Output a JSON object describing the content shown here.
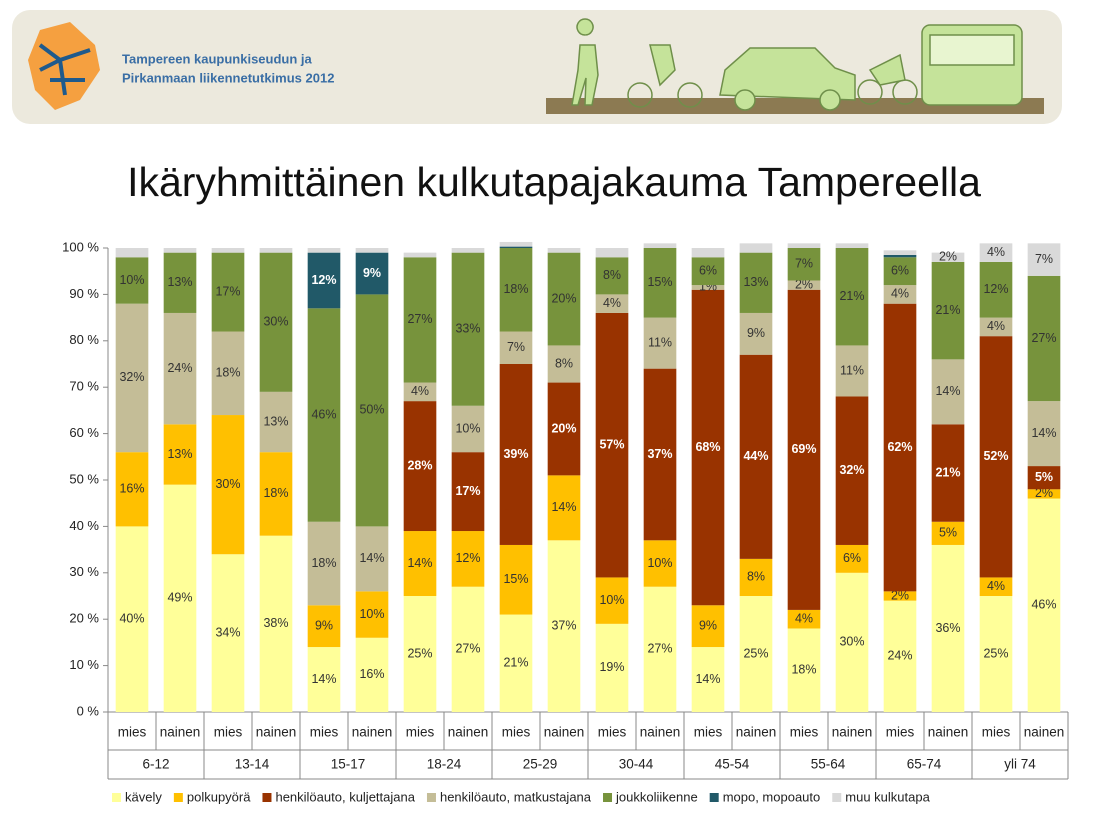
{
  "header": {
    "lines": [
      "Tampereen kaupunkiseudun ja",
      "Pirkanmaan liikennetutkimus 2012"
    ]
  },
  "chart_data": {
    "type": "stacked_bar",
    "title": "Ikäryhmittäinen kulkutapajakauma Tampereella",
    "categories": [
      "mies",
      "nainen",
      "mies",
      "nainen",
      "mies",
      "nainen",
      "mies",
      "nainen",
      "mies",
      "nainen",
      "mies",
      "nainen",
      "mies",
      "nainen",
      "mies",
      "nainen",
      "mies",
      "nainen",
      "mies",
      "nainen"
    ],
    "groups": [
      "6-12",
      "13-14",
      "15-17",
      "18-24",
      "25-29",
      "30-44",
      "45-54",
      "55-64",
      "65-74",
      "yli 74"
    ],
    "ylim": [
      0,
      100
    ],
    "yticks": [
      {
        "value": 0,
        "label": "0 %"
      },
      {
        "value": 10,
        "label": "10 %"
      },
      {
        "value": 20,
        "label": "20 %"
      },
      {
        "value": 30,
        "label": "30 %"
      },
      {
        "value": 40,
        "label": "40 %"
      },
      {
        "value": 50,
        "label": "50 %"
      },
      {
        "value": 60,
        "label": "60 %"
      },
      {
        "value": 70,
        "label": "70 %"
      },
      {
        "value": 80,
        "label": "80 %"
      },
      {
        "value": 90,
        "label": "90 %"
      },
      {
        "value": 100,
        "label": "100 %"
      }
    ],
    "grid": false,
    "legend": "bottom",
    "series": [
      {
        "name": "kävely",
        "color": "#ffff99",
        "label_color": "#333333",
        "values": [
          40,
          49,
          34,
          38,
          14,
          16,
          25,
          27,
          21,
          37,
          19,
          27,
          14,
          25,
          18,
          30,
          24,
          36,
          25,
          46
        ],
        "value_labels": [
          "40%",
          "49%",
          "34%",
          "38%",
          "14%",
          "16%",
          "25%",
          "27%",
          "21%",
          "37%",
          "19%",
          "27%",
          "14%",
          "25%",
          "18%",
          "30%",
          "24%",
          "36%",
          "25%",
          "46%"
        ]
      },
      {
        "name": "polkupyörä",
        "color": "#ffc000",
        "label_color": "#333333",
        "values": [
          16,
          13,
          30,
          18,
          9,
          10,
          14,
          12,
          15,
          14,
          10,
          10,
          9,
          8,
          4,
          6,
          2,
          5,
          4,
          2
        ],
        "value_labels": [
          "16%",
          "13%",
          "30%",
          "18%",
          "9%",
          "10%",
          "14%",
          "12%",
          "15%",
          "14%",
          "10%",
          "10%",
          "9%",
          "8%",
          "4%",
          "6%",
          "2%",
          "5%",
          "4%",
          "2%"
        ]
      },
      {
        "name": "henkilöauto, kuljettajana",
        "color": "#993300",
        "label_color": "#ffffff",
        "values": [
          0,
          0,
          0,
          0,
          0,
          0,
          28,
          17,
          39,
          20,
          57,
          37,
          68,
          44,
          69,
          32,
          62,
          21,
          52,
          5
        ],
        "value_labels": [
          null,
          null,
          null,
          null,
          null,
          null,
          "28%",
          "17%",
          "39%",
          "20%",
          "57%",
          "37%",
          "68%",
          "44%",
          "69%",
          "32%",
          "62%",
          "21%",
          "52%",
          "5%"
        ]
      },
      {
        "name": "henkilöauto, matkustajana",
        "color": "#c4bd97",
        "label_color": "#333333",
        "values": [
          32,
          24,
          18,
          13,
          18,
          14,
          4,
          10,
          7,
          8,
          4,
          11,
          1,
          9,
          2,
          11,
          4,
          14,
          4,
          14
        ],
        "value_labels": [
          "32%",
          "24%",
          "18%",
          "13%",
          "18%",
          "14%",
          "4%",
          "10%",
          "7%",
          "8%",
          "4%",
          "11%",
          "1%",
          "9%",
          "2%",
          "11%",
          "4%",
          "14%",
          "4%",
          "14%"
        ]
      },
      {
        "name": "joukkoliikenne",
        "color": "#77933c",
        "label_color": "#333333",
        "values": [
          10,
          13,
          17,
          30,
          46,
          50,
          27,
          33,
          18,
          20,
          8,
          15,
          6,
          13,
          7,
          21,
          6,
          21,
          12,
          27
        ],
        "value_labels": [
          "10%",
          "13%",
          "17%",
          "30%",
          "46%",
          "50%",
          "27%",
          "33%",
          "18%",
          "20%",
          "8%",
          "15%",
          "6%",
          "13%",
          "7%",
          "21%",
          "6%",
          "21%",
          "12%",
          "27%"
        ]
      },
      {
        "name": "mopo, mopoauto",
        "color": "#215968",
        "label_color": "#ffffff",
        "values": [
          0,
          0,
          0,
          0,
          12,
          9,
          0,
          0,
          0.3,
          0,
          0,
          0,
          0,
          0,
          0,
          0,
          0.5,
          0,
          0,
          0
        ],
        "value_labels": [
          null,
          null,
          null,
          null,
          "12%",
          "9%",
          null,
          null,
          null,
          null,
          null,
          null,
          null,
          null,
          null,
          null,
          null,
          null,
          null,
          null
        ]
      },
      {
        "name": "muu kulkutapa",
        "color": "#d9d9d9",
        "label_color": "#333333",
        "values": [
          2,
          1,
          1,
          1,
          1,
          1,
          1,
          1,
          1,
          1,
          2,
          1,
          2,
          2,
          1,
          1,
          1,
          2,
          4,
          7
        ],
        "value_labels": [
          null,
          null,
          null,
          null,
          null,
          null,
          null,
          null,
          null,
          null,
          null,
          null,
          null,
          null,
          null,
          null,
          null,
          "2%",
          "4%",
          "7%"
        ]
      }
    ]
  }
}
